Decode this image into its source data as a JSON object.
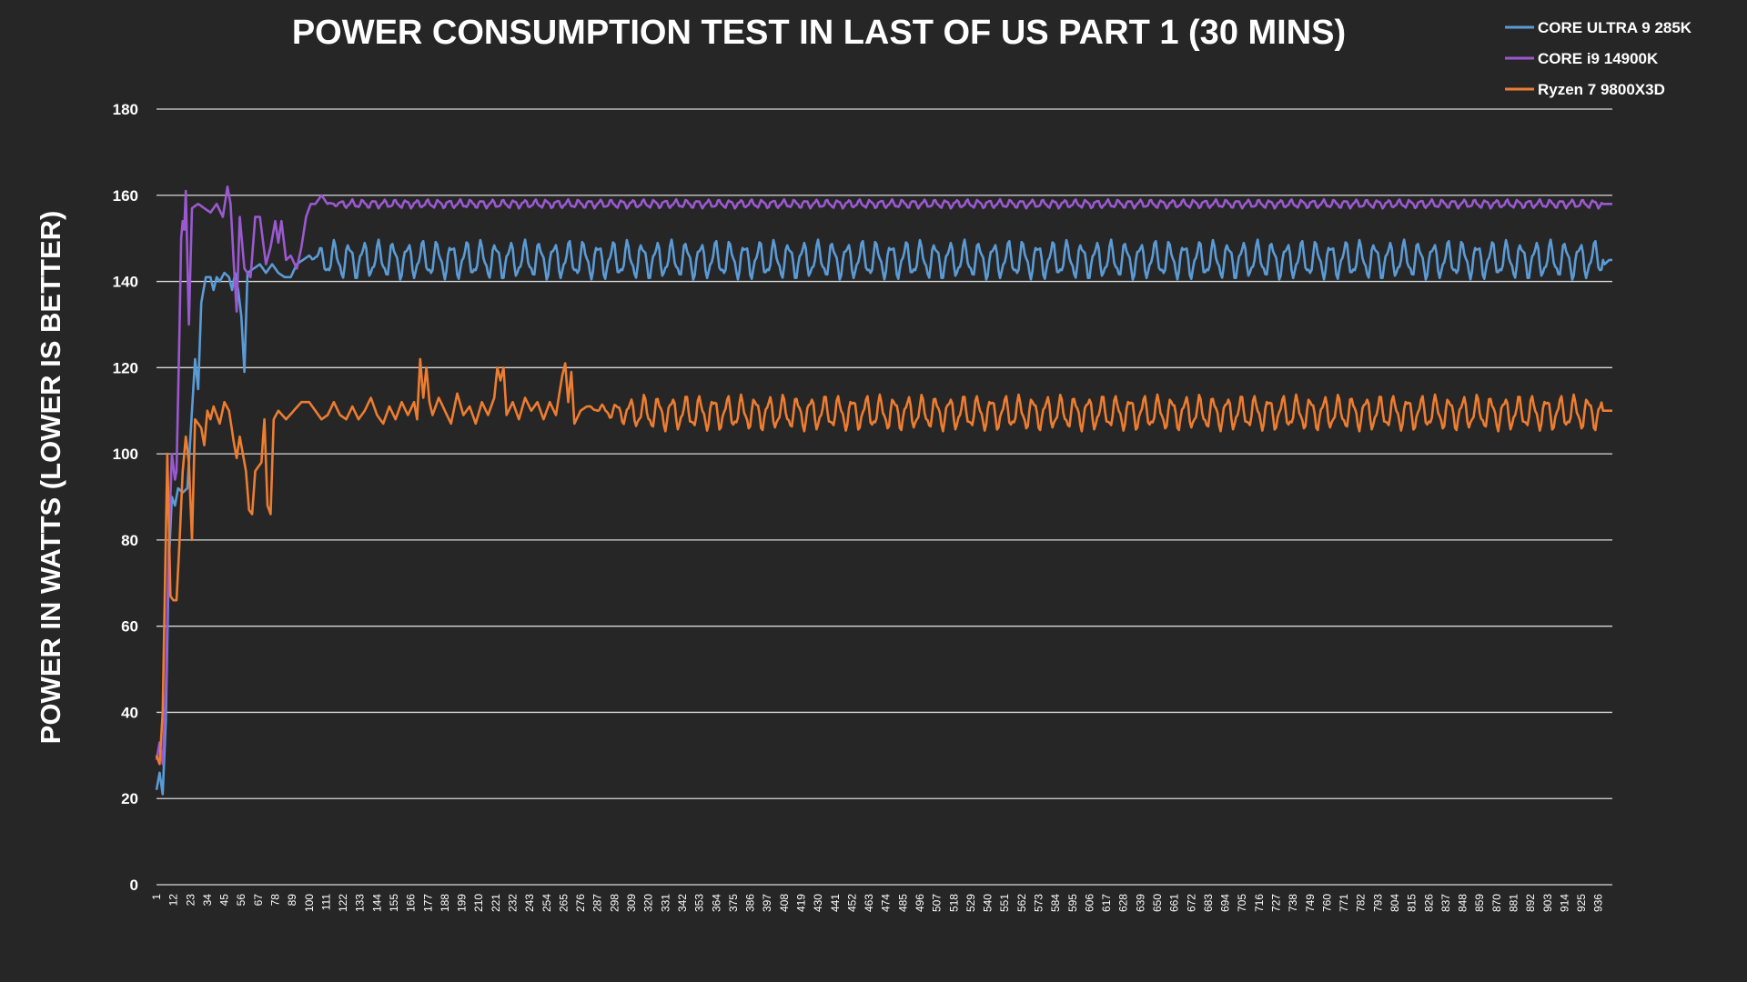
{
  "chart_data": {
    "type": "line",
    "title": "POWER CONSUMPTION TEST IN LAST OF US PART 1 (30 MINS)",
    "ylabel": "POWER IN WATTS (LOWER IS BETTER)",
    "xlabel": "",
    "ylim": [
      0,
      180
    ],
    "yticks": [
      0,
      20,
      40,
      60,
      80,
      100,
      120,
      140,
      160,
      180
    ],
    "grid": true,
    "legend_position": "top-right",
    "x_range": [
      1,
      945
    ],
    "x_tick_labels": [
      1,
      12,
      23,
      34,
      45,
      56,
      67,
      78,
      89,
      100,
      111,
      122,
      133,
      144,
      155,
      166,
      177,
      188,
      199,
      210,
      221,
      232,
      243,
      254,
      265,
      276,
      287,
      298,
      309,
      320,
      331,
      342,
      353,
      364,
      375,
      386,
      397,
      408,
      419,
      430,
      441,
      452,
      463,
      474,
      485,
      496,
      507,
      518,
      529,
      540,
      551,
      562,
      573,
      584,
      595,
      606,
      617,
      628,
      639,
      650,
      661,
      672,
      683,
      694,
      705,
      716,
      727,
      738,
      749,
      760,
      771,
      782,
      793,
      804,
      815,
      826,
      837,
      848,
      859,
      870,
      881,
      892,
      903,
      914,
      925,
      936
    ],
    "series": [
      {
        "name": "CORE ULTRA 9 285K",
        "color": "#5b9bd5",
        "points": [
          [
            1,
            22
          ],
          [
            3,
            26
          ],
          [
            5,
            21
          ],
          [
            7,
            38
          ],
          [
            9,
            75
          ],
          [
            11,
            90
          ],
          [
            13,
            88
          ],
          [
            15,
            92
          ],
          [
            18,
            91
          ],
          [
            21,
            92
          ],
          [
            24,
            110
          ],
          [
            26,
            122
          ],
          [
            28,
            115
          ],
          [
            30,
            135
          ],
          [
            33,
            141
          ],
          [
            36,
            141
          ],
          [
            38,
            138
          ],
          [
            40,
            141
          ],
          [
            42,
            140
          ],
          [
            45,
            142
          ],
          [
            48,
            141
          ],
          [
            50,
            138
          ],
          [
            52,
            142
          ],
          [
            54,
            138
          ],
          [
            56,
            132
          ],
          [
            58,
            119
          ],
          [
            60,
            142
          ],
          [
            64,
            143
          ],
          [
            68,
            144
          ],
          [
            72,
            142
          ],
          [
            76,
            144
          ],
          [
            80,
            142
          ],
          [
            84,
            141
          ],
          [
            88,
            141
          ],
          [
            92,
            144
          ],
          [
            96,
            145
          ],
          [
            100,
            146
          ],
          [
            110,
            146
          ],
          [
            935,
            146
          ],
          [
            936,
            139
          ],
          [
            938,
            146
          ],
          [
            940,
            144
          ],
          [
            943,
            145
          ],
          [
            945,
            145
          ]
        ],
        "osc_from": 100,
        "osc_center": 145,
        "osc_amplitude": 3.5,
        "osc_period": 9.5
      },
      {
        "name": "CORE i9 14900K",
        "color": "#9b59d0",
        "points": [
          [
            1,
            29
          ],
          [
            3,
            33
          ],
          [
            5,
            28
          ],
          [
            7,
            45
          ],
          [
            9,
            80
          ],
          [
            11,
            100
          ],
          [
            13,
            94
          ],
          [
            14,
            96
          ],
          [
            16,
            130
          ],
          [
            17,
            150
          ],
          [
            18,
            154
          ],
          [
            19,
            152
          ],
          [
            20,
            161
          ],
          [
            22,
            130
          ],
          [
            24,
            157
          ],
          [
            28,
            158
          ],
          [
            32,
            157
          ],
          [
            36,
            156
          ],
          [
            40,
            158
          ],
          [
            44,
            155
          ],
          [
            47,
            162
          ],
          [
            49,
            158
          ],
          [
            51,
            145
          ],
          [
            53,
            133
          ],
          [
            55,
            155
          ],
          [
            58,
            143
          ],
          [
            62,
            141
          ],
          [
            65,
            155
          ],
          [
            68,
            155
          ],
          [
            72,
            144
          ],
          [
            75,
            148
          ],
          [
            78,
            154
          ],
          [
            80,
            149
          ],
          [
            82,
            154
          ],
          [
            85,
            145
          ],
          [
            88,
            146
          ],
          [
            92,
            143
          ],
          [
            95,
            148
          ],
          [
            98,
            155
          ],
          [
            101,
            158
          ],
          [
            104,
            158
          ],
          [
            108,
            160
          ],
          [
            112,
            158
          ],
          [
            945,
            158
          ]
        ],
        "osc_from": 110,
        "osc_center": 158,
        "osc_amplitude": 0.8,
        "osc_period": 7
      },
      {
        "name": "Ryzen 7 9800X3D",
        "color": "#ed7d31",
        "points": [
          [
            1,
            30
          ],
          [
            3,
            28
          ],
          [
            5,
            40
          ],
          [
            7,
            80
          ],
          [
            8,
            100
          ],
          [
            10,
            67
          ],
          [
            12,
            66
          ],
          [
            14,
            66
          ],
          [
            16,
            80
          ],
          [
            18,
            96
          ],
          [
            20,
            104
          ],
          [
            22,
            98
          ],
          [
            24,
            80
          ],
          [
            26,
            108
          ],
          [
            28,
            107
          ],
          [
            30,
            106
          ],
          [
            32,
            102
          ],
          [
            34,
            110
          ],
          [
            36,
            108
          ],
          [
            38,
            111
          ],
          [
            40,
            109
          ],
          [
            42,
            107
          ],
          [
            45,
            112
          ],
          [
            48,
            110
          ],
          [
            51,
            103
          ],
          [
            53,
            99
          ],
          [
            55,
            104
          ],
          [
            57,
            100
          ],
          [
            59,
            96
          ],
          [
            61,
            87
          ],
          [
            63,
            86
          ],
          [
            65,
            96
          ],
          [
            67,
            97
          ],
          [
            69,
            98
          ],
          [
            71,
            108
          ],
          [
            73,
            88
          ],
          [
            75,
            86
          ],
          [
            77,
            108
          ],
          [
            80,
            110
          ],
          [
            85,
            108
          ],
          [
            90,
            110
          ],
          [
            95,
            112
          ],
          [
            100,
            112
          ],
          [
            104,
            110
          ],
          [
            108,
            108
          ],
          [
            112,
            109
          ],
          [
            116,
            112
          ],
          [
            120,
            109
          ],
          [
            124,
            108
          ],
          [
            128,
            111
          ],
          [
            132,
            108
          ],
          [
            136,
            110
          ],
          [
            140,
            113
          ],
          [
            144,
            109
          ],
          [
            148,
            107
          ],
          [
            152,
            111
          ],
          [
            156,
            108
          ],
          [
            160,
            112
          ],
          [
            164,
            109
          ],
          [
            168,
            112
          ],
          [
            170,
            108
          ],
          [
            172,
            122
          ],
          [
            174,
            113
          ],
          [
            176,
            120
          ],
          [
            178,
            112
          ],
          [
            180,
            109
          ],
          [
            184,
            113
          ],
          [
            188,
            110
          ],
          [
            192,
            107
          ],
          [
            196,
            114
          ],
          [
            200,
            109
          ],
          [
            204,
            111
          ],
          [
            208,
            107
          ],
          [
            212,
            112
          ],
          [
            216,
            109
          ],
          [
            220,
            113
          ],
          [
            222,
            120
          ],
          [
            224,
            117
          ],
          [
            226,
            120
          ],
          [
            228,
            109
          ],
          [
            232,
            112
          ],
          [
            236,
            108
          ],
          [
            240,
            113
          ],
          [
            244,
            110
          ],
          [
            248,
            112
          ],
          [
            252,
            108
          ],
          [
            256,
            112
          ],
          [
            260,
            109
          ],
          [
            264,
            118
          ],
          [
            266,
            121
          ],
          [
            268,
            112
          ],
          [
            270,
            119
          ],
          [
            272,
            107
          ],
          [
            276,
            110
          ],
          [
            280,
            111
          ],
          [
            300,
            110
          ],
          [
            390,
            110
          ],
          [
            392,
            120
          ],
          [
            394,
            108
          ],
          [
            398,
            110
          ],
          [
            945,
            110
          ]
        ],
        "osc_from": 280,
        "osc_center": 109.5,
        "osc_amplitude": 3.2,
        "osc_period": 9
      }
    ]
  }
}
